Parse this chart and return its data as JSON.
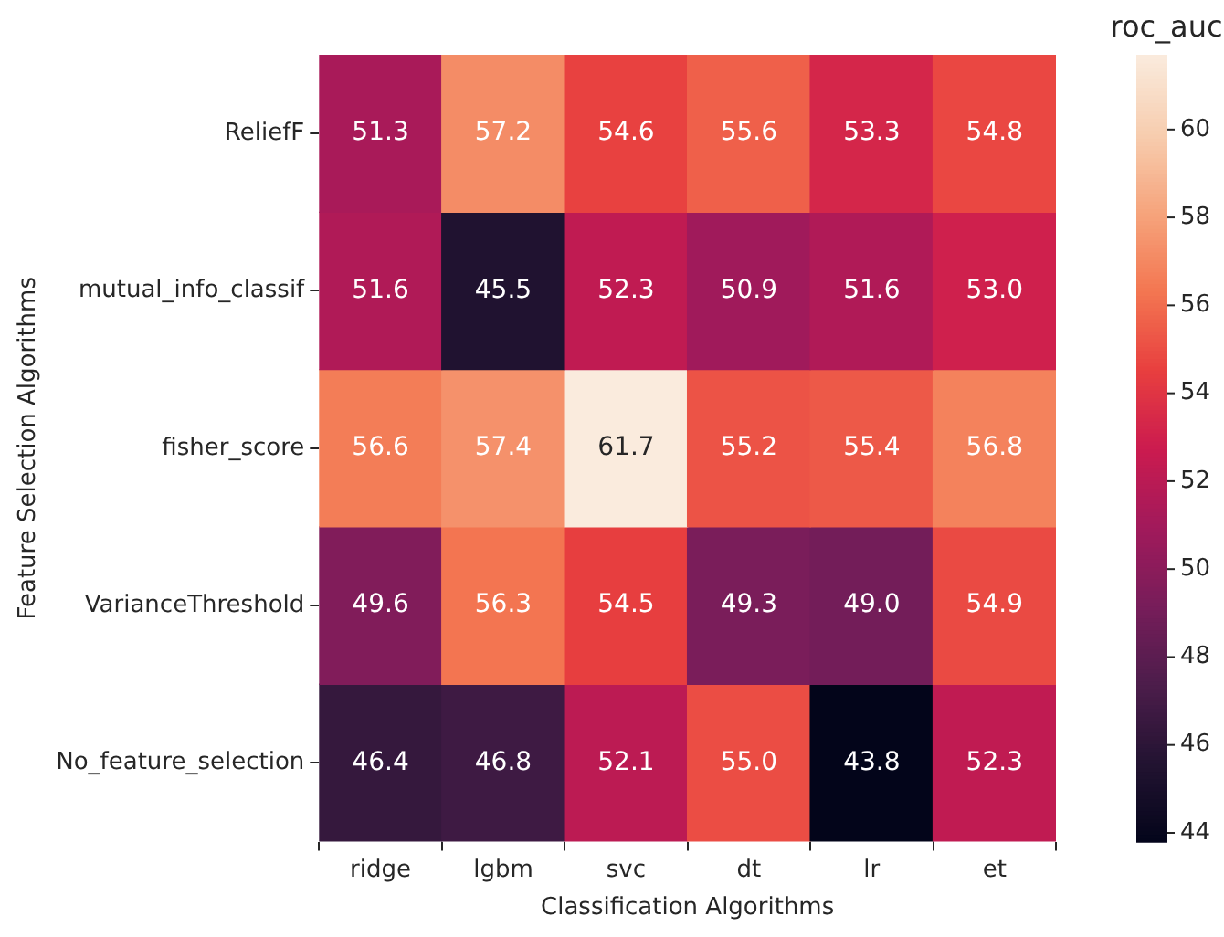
{
  "chart_data": {
    "type": "heatmap",
    "xlabel": "Classification Algorithms",
    "ylabel": "Feature Selection Algorithms",
    "clabel": "roc_auc",
    "categories": [
      "ridge",
      "lgbm",
      "svc",
      "dt",
      "lr",
      "et"
    ],
    "y_categories": [
      "ReliefF",
      "mutual_info_classif",
      "fisher_score",
      "VarianceThreshold",
      "No_feature_selection"
    ],
    "cells": [
      [
        51.3,
        57.2,
        54.6,
        55.6,
        53.3,
        54.8
      ],
      [
        51.6,
        45.5,
        52.3,
        50.9,
        51.6,
        53.0
      ],
      [
        56.6,
        57.4,
        61.7,
        55.2,
        55.4,
        56.8
      ],
      [
        49.6,
        56.3,
        54.5,
        49.3,
        49.0,
        54.9
      ],
      [
        46.4,
        46.8,
        52.1,
        55.0,
        43.8,
        52.3
      ]
    ],
    "cell_labels": [
      [
        "51.3",
        "57.2",
        "54.6",
        "55.6",
        "53.3",
        "54.8"
      ],
      [
        "51.6",
        "45.5",
        "52.3",
        "50.9",
        "51.6",
        "53.0"
      ],
      [
        "56.6",
        "57.4",
        "61.7",
        "55.2",
        "55.4",
        "56.8"
      ],
      [
        "49.6",
        "56.3",
        "54.5",
        "49.3",
        "49.0",
        "54.9"
      ],
      [
        "46.4",
        "46.8",
        "52.1",
        "55.0",
        "43.8",
        "52.3"
      ]
    ],
    "clim": [
      43.8,
      61.7
    ],
    "cticks": [
      44,
      46,
      48,
      50,
      52,
      54,
      56,
      58,
      60
    ],
    "data_labels": true,
    "grid": false,
    "legend": false
  }
}
